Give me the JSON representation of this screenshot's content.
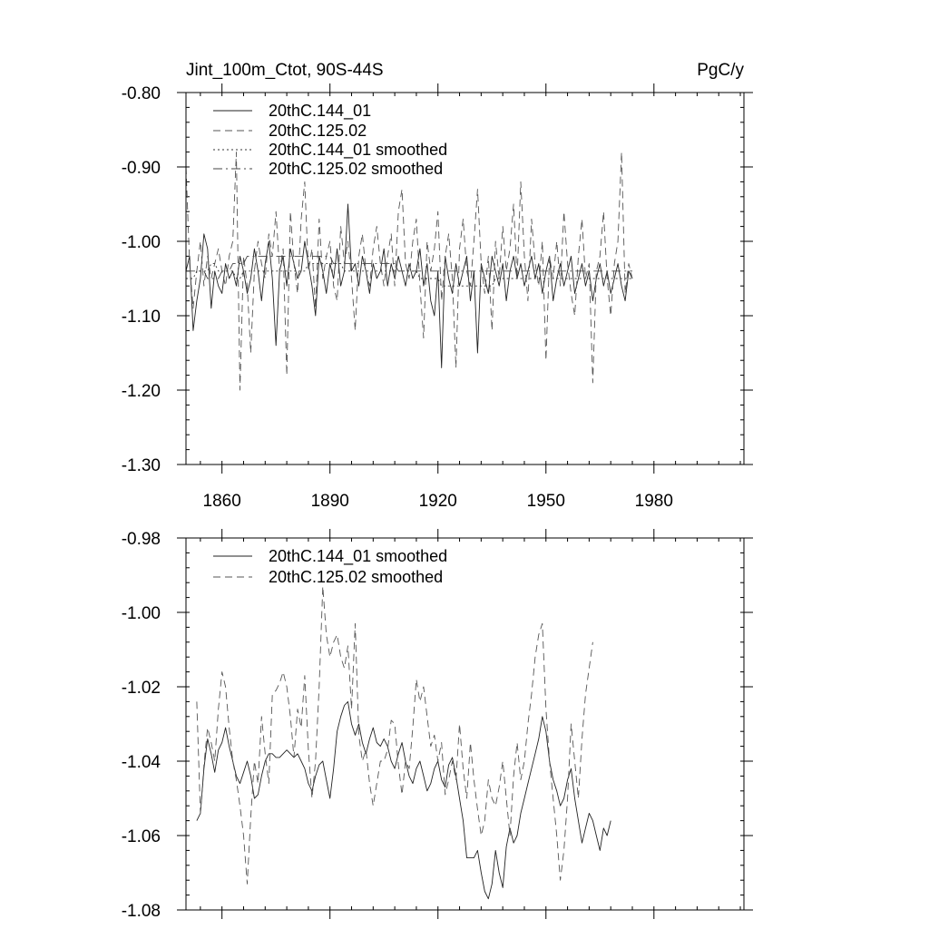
{
  "chart_data": [
    {
      "type": "line",
      "title": "Jint_100m_Ctot, 90S-44S",
      "units_label": "PgC/y",
      "xlabel": "",
      "ylabel": "",
      "xlim": [
        1850,
        2005
      ],
      "ylim": [
        -1.3,
        -0.8
      ],
      "x_tick_values": [
        1860,
        1890,
        1920,
        1950,
        1980
      ],
      "x_tick_labels": [
        "1860",
        "1890",
        "1920",
        "1950",
        "1980"
      ],
      "y_tick_values": [
        -0.8,
        -0.9,
        -1.0,
        -1.1,
        -1.2,
        -1.3
      ],
      "y_tick_labels": [
        "-0.80",
        "-0.90",
        "-1.00",
        "-1.10",
        "-1.20",
        "-1.30"
      ],
      "legend_position": "top-left",
      "x_start": 1850,
      "series": [
        {
          "name": "20thC.144_01",
          "dash": "solid",
          "color": "#222222",
          "values": [
            -1.04,
            -1.02,
            -1.12,
            -1.08,
            -1.05,
            -0.99,
            -1.01,
            -1.09,
            -1.04,
            -1.06,
            -1.07,
            -1.03,
            -1.05,
            -1.04,
            -1.06,
            -1.02,
            -1.04,
            -1.07,
            -1.05,
            -1.01,
            -1.04,
            -1.08,
            -1.03,
            -1.0,
            -1.05,
            -1.14,
            -1.04,
            -1.02,
            -1.06,
            -1.01,
            -1.03,
            -1.05,
            -1.04,
            -1.0,
            -1.03,
            -1.06,
            -1.1,
            -1.02,
            -1.04,
            -1.07,
            -1.03,
            -1.05,
            -1.01,
            -1.06,
            -1.04,
            -0.95,
            -1.04,
            -1.03,
            -1.06,
            -1.02,
            -1.04,
            -1.07,
            -1.03,
            -1.05,
            -1.04,
            -1.01,
            -1.06,
            -1.03,
            -1.05,
            -1.02,
            -1.04,
            -1.06,
            -1.03,
            -1.05,
            -1.04,
            -1.01,
            -1.06,
            -1.03,
            -1.08,
            -1.1,
            -1.04,
            -1.17,
            -1.02,
            -1.05,
            -1.07,
            -1.03,
            -1.06,
            -1.04,
            -1.02,
            -1.08,
            -1.04,
            -1.15,
            -1.03,
            -1.05,
            -1.07,
            -1.02,
            -1.04,
            -1.06,
            -1.03,
            -1.08,
            -1.04,
            -1.02,
            -1.05,
            -1.03,
            -1.06,
            -1.04,
            -1.02,
            -1.05,
            -1.03,
            -1.07,
            -1.04,
            -1.02,
            -1.08,
            -1.05,
            -1.03,
            -1.06,
            -1.04,
            -1.02,
            -1.07,
            -1.05,
            -1.03,
            -1.06,
            -1.04,
            -1.08,
            -1.05,
            -1.03,
            -1.06,
            -1.04,
            -1.07,
            -1.05,
            -1.03,
            -1.06,
            -1.08,
            -1.04,
            -1.05
          ]
        },
        {
          "name": "20thC.125.02",
          "dash": "8,5",
          "color": "#555555",
          "values": [
            -0.9,
            -1.03,
            -1.09,
            -1.04,
            -1.0,
            -1.06,
            -1.02,
            -1.05,
            -1.03,
            -1.01,
            -1.04,
            -1.06,
            -1.02,
            -1.0,
            -0.88,
            -1.2,
            -1.02,
            -1.06,
            -1.15,
            -1.04,
            -1.0,
            -1.03,
            -1.05,
            -0.99,
            -1.02,
            -0.96,
            -1.04,
            -1.01,
            -1.18,
            -0.96,
            -1.03,
            -1.07,
            -0.97,
            -0.92,
            -1.04,
            -1.01,
            -1.09,
            -0.97,
            -1.05,
            -1.02,
            -1.0,
            -1.06,
            -1.08,
            -0.98,
            -1.03,
            -1.0,
            -1.05,
            -1.12,
            -1.02,
            -0.99,
            -1.04,
            -1.06,
            -1.01,
            -0.98,
            -1.03,
            -1.06,
            -1.02,
            -0.99,
            -1.06,
            -0.96,
            -0.93,
            -1.03,
            -1.05,
            -1.0,
            -0.97,
            -1.06,
            -1.13,
            -1.0,
            -1.04,
            -1.01,
            -0.96,
            -1.08,
            -1.02,
            -0.99,
            -1.05,
            -1.17,
            -1.01,
            -0.97,
            -1.04,
            -1.06,
            -1.0,
            -0.93,
            -1.03,
            -1.07,
            -1.02,
            -1.12,
            -1.0,
            -1.05,
            -0.98,
            -1.04,
            -1.01,
            -0.95,
            -1.05,
            -0.92,
            -1.02,
            -1.08,
            -0.97,
            -1.03,
            -1.06,
            -1.0,
            -1.16,
            -1.02,
            -1.05,
            -1.0,
            -1.06,
            -0.96,
            -1.03,
            -1.07,
            -1.1,
            -1.02,
            -0.97,
            -1.05,
            -1.03,
            -1.19,
            -1.04,
            -1.02,
            -0.96,
            -1.05,
            -1.1,
            -1.03,
            -1.0,
            -0.88,
            -1.07,
            -1.03,
            -1.05
          ]
        },
        {
          "name": "20thC.144_01 smoothed",
          "dash": "2,3",
          "color": "#333333",
          "values": [
            -1.05,
            -1.05,
            -1.05,
            -1.04,
            -1.04,
            -1.04,
            -1.04,
            -1.03,
            -1.03,
            -1.04,
            -1.04,
            -1.04,
            -1.04,
            -1.04,
            -1.05,
            -1.05,
            -1.04,
            -1.04,
            -1.04,
            -1.04,
            -1.04,
            -1.04,
            -1.04,
            -1.04,
            -1.04,
            -1.04,
            -1.04,
            -1.04,
            -1.04,
            -1.04,
            -1.04,
            -1.04,
            -1.04,
            -1.04,
            -1.03,
            -1.03,
            -1.03,
            -1.03,
            -1.03,
            -1.03,
            -1.03,
            -1.03,
            -1.03,
            -1.03,
            -1.04,
            -1.04,
            -1.04,
            -1.04,
            -1.04,
            -1.04,
            -1.04,
            -1.04,
            -1.04,
            -1.04,
            -1.04,
            -1.04,
            -1.04,
            -1.04,
            -1.04,
            -1.04,
            -1.04,
            -1.04,
            -1.04,
            -1.04,
            -1.04,
            -1.05,
            -1.05,
            -1.05,
            -1.05,
            -1.05,
            -1.05,
            -1.06,
            -1.06,
            -1.06,
            -1.06,
            -1.06,
            -1.06,
            -1.06,
            -1.06,
            -1.06,
            -1.06,
            -1.06,
            -1.06,
            -1.06,
            -1.06,
            -1.06,
            -1.05,
            -1.05,
            -1.05,
            -1.05,
            -1.05,
            -1.05,
            -1.05,
            -1.05,
            -1.05,
            -1.05,
            -1.05,
            -1.05,
            -1.05,
            -1.05,
            -1.05,
            -1.05,
            -1.05,
            -1.05,
            -1.05,
            -1.05,
            -1.05,
            -1.05,
            -1.05,
            -1.05,
            -1.05,
            -1.05,
            -1.05,
            -1.05,
            -1.05,
            -1.05,
            -1.05,
            -1.05,
            -1.05,
            -1.05,
            -1.05,
            -1.05,
            -1.05,
            -1.05,
            -1.05
          ]
        },
        {
          "name": "20thC.125.02 smoothed",
          "dash": "10,4,2,4",
          "color": "#444444",
          "values": [
            -1.04,
            -1.04,
            -1.04,
            -1.04,
            -1.04,
            -1.04,
            -1.05,
            -1.05,
            -1.05,
            -1.05,
            -1.04,
            -1.04,
            -1.04,
            -1.03,
            -1.03,
            -1.03,
            -1.03,
            -1.02,
            -1.02,
            -1.02,
            -1.02,
            -1.02,
            -1.02,
            -1.02,
            -1.02,
            -1.02,
            -1.02,
            -1.02,
            -1.02,
            -1.02,
            -1.02,
            -1.02,
            -1.02,
            -1.02,
            -1.02,
            -1.02,
            -1.02,
            -1.02,
            -1.02,
            -1.02,
            -1.02,
            -1.03,
            -1.03,
            -1.03,
            -1.03,
            -1.03,
            -1.03,
            -1.03,
            -1.03,
            -1.03,
            -1.03,
            -1.03,
            -1.03,
            -1.03,
            -1.03,
            -1.03,
            -1.03,
            -1.03,
            -1.03,
            -1.04,
            -1.04,
            -1.04,
            -1.04,
            -1.04,
            -1.04,
            -1.04,
            -1.04,
            -1.04,
            -1.04,
            -1.04,
            -1.04,
            -1.04,
            -1.04,
            -1.04,
            -1.04,
            -1.04,
            -1.04,
            -1.04,
            -1.04,
            -1.04,
            -1.04,
            -1.04,
            -1.04,
            -1.04,
            -1.04,
            -1.04,
            -1.04,
            -1.04,
            -1.04,
            -1.04,
            -1.04,
            -1.04,
            -1.04,
            -1.04,
            -1.04,
            -1.04,
            -1.04,
            -1.04,
            -1.04,
            -1.04,
            -1.04,
            -1.04,
            -1.04,
            -1.04,
            -1.04,
            -1.04,
            -1.04,
            -1.04,
            -1.04,
            -1.04,
            -1.04,
            -1.04,
            -1.04,
            -1.04,
            -1.04,
            -1.04,
            -1.04,
            -1.04,
            -1.04,
            -1.04,
            -1.04,
            -1.04,
            -1.04,
            -1.04,
            -1.04
          ]
        }
      ]
    },
    {
      "type": "line",
      "title": "",
      "xlabel": "",
      "ylabel": "",
      "xlim": [
        1850,
        2005
      ],
      "ylim": [
        -1.08,
        -0.98
      ],
      "x_tick_values": [
        1860,
        1890,
        1920,
        1950,
        1980
      ],
      "x_tick_labels": [],
      "y_tick_values": [
        -0.98,
        -1.0,
        -1.02,
        -1.04,
        -1.06,
        -1.08
      ],
      "y_tick_labels": [
        "-0.98",
        "-1.00",
        "-1.02",
        "-1.04",
        "-1.06",
        "-1.08"
      ],
      "legend_position": "top-left",
      "x_start": 1853,
      "series": [
        {
          "name": "20thC.144_01 smoothed",
          "dash": "solid",
          "color": "#222222",
          "values": [
            -1.056,
            -1.054,
            -1.042,
            -1.034,
            -1.038,
            -1.043,
            -1.037,
            -1.035,
            -1.031,
            -1.036,
            -1.04,
            -1.044,
            -1.046,
            -1.043,
            -1.04,
            -1.044,
            -1.05,
            -1.049,
            -1.044,
            -1.04,
            -1.038,
            -1.038,
            -1.039,
            -1.039,
            -1.038,
            -1.037,
            -1.038,
            -1.039,
            -1.038,
            -1.04,
            -1.042,
            -1.046,
            -1.048,
            -1.044,
            -1.041,
            -1.04,
            -1.045,
            -1.05,
            -1.042,
            -1.032,
            -1.028,
            -1.025,
            -1.024,
            -1.03,
            -1.033,
            -1.03,
            -1.035,
            -1.038,
            -1.034,
            -1.031,
            -1.035,
            -1.036,
            -1.034,
            -1.036,
            -1.04,
            -1.042,
            -1.038,
            -1.035,
            -1.04,
            -1.044,
            -1.046,
            -1.042,
            -1.04,
            -1.044,
            -1.048,
            -1.046,
            -1.042,
            -1.04,
            -1.045,
            -1.047,
            -1.041,
            -1.039,
            -1.044,
            -1.05,
            -1.056,
            -1.066,
            -1.066,
            -1.066,
            -1.064,
            -1.07,
            -1.075,
            -1.077,
            -1.073,
            -1.064,
            -1.07,
            -1.074,
            -1.063,
            -1.058,
            -1.062,
            -1.06,
            -1.054,
            -1.05,
            -1.046,
            -1.042,
            -1.038,
            -1.034,
            -1.028,
            -1.032,
            -1.04,
            -1.045,
            -1.048,
            -1.052,
            -1.05,
            -1.045,
            -1.042,
            -1.05,
            -1.056,
            -1.062,
            -1.058,
            -1.054,
            -1.056,
            -1.06,
            -1.064,
            -1.058,
            -1.06,
            -1.056
          ]
        },
        {
          "name": "20thC.125.02 smoothed",
          "dash": "8,5",
          "color": "#555555",
          "values": [
            -1.024,
            -1.054,
            -1.041,
            -1.031,
            -1.035,
            -1.04,
            -1.026,
            -1.016,
            -1.02,
            -1.031,
            -1.04,
            -1.045,
            -1.052,
            -1.06,
            -1.073,
            -1.055,
            -1.04,
            -1.046,
            -1.028,
            -1.038,
            -1.046,
            -1.022,
            -1.021,
            -1.019,
            -1.016,
            -1.02,
            -1.028,
            -1.039,
            -1.026,
            -1.031,
            -1.017,
            -1.037,
            -1.05,
            -1.04,
            -1.02,
            -0.993,
            -1.006,
            -1.012,
            -1.008,
            -1.006,
            -1.012,
            -1.015,
            -1.009,
            -1.026,
            -1.003,
            -1.033,
            -1.04,
            -1.037,
            -1.046,
            -1.052,
            -1.046,
            -1.04,
            -1.04,
            -1.037,
            -1.029,
            -1.03,
            -1.041,
            -1.049,
            -1.04,
            -1.042,
            -1.031,
            -1.018,
            -1.024,
            -1.02,
            -1.028,
            -1.036,
            -1.033,
            -1.04,
            -1.035,
            -1.049,
            -1.045,
            -1.04,
            -1.045,
            -1.03,
            -1.042,
            -1.05,
            -1.035,
            -1.045,
            -1.053,
            -1.06,
            -1.056,
            -1.045,
            -1.05,
            -1.052,
            -1.047,
            -1.04,
            -1.05,
            -1.06,
            -1.044,
            -1.035,
            -1.045,
            -1.04,
            -1.03,
            -1.022,
            -1.012,
            -1.006,
            -1.003,
            -1.026,
            -1.04,
            -1.05,
            -1.06,
            -1.072,
            -1.064,
            -1.05,
            -1.03,
            -1.04,
            -1.05,
            -1.034,
            -1.022,
            -1.015,
            -1.008
          ]
        }
      ]
    }
  ]
}
